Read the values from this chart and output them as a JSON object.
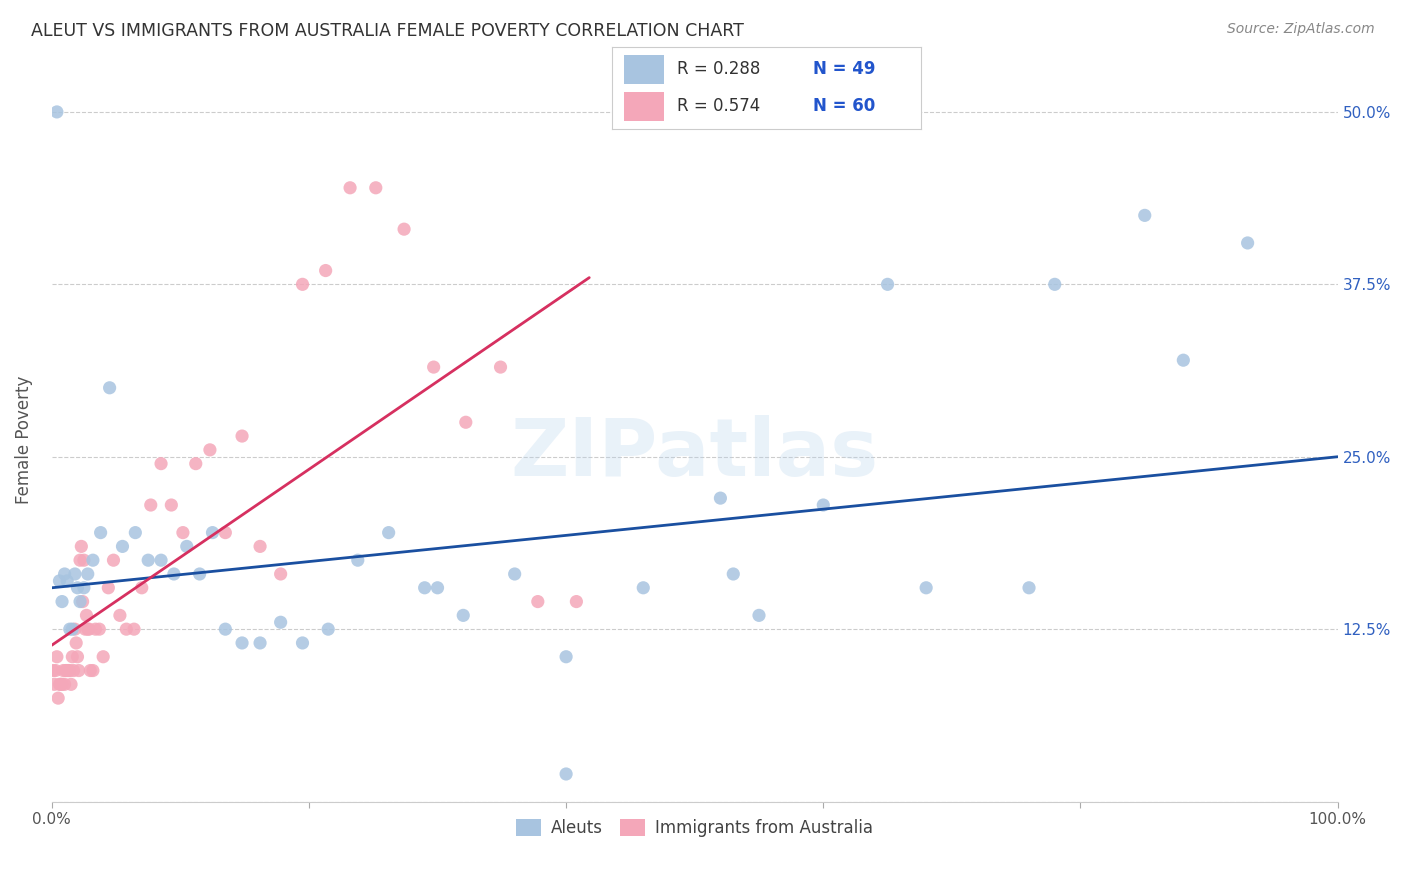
{
  "title": "ALEUT VS IMMIGRANTS FROM AUSTRALIA FEMALE POVERTY CORRELATION CHART",
  "source": "Source: ZipAtlas.com",
  "ylabel": "Female Poverty",
  "yticks": [
    0.0,
    0.125,
    0.25,
    0.375,
    0.5
  ],
  "ytick_labels": [
    "",
    "12.5%",
    "25.0%",
    "37.5%",
    "50.0%"
  ],
  "legend_r1": "R = 0.288",
  "legend_n1": "N = 49",
  "legend_r2": "R = 0.574",
  "legend_n2": "N = 60",
  "aleut_color": "#a8c4e0",
  "australia_color": "#f4a7b9",
  "trend_aleut_color": "#1a4fa0",
  "trend_australia_color": "#d63060",
  "watermark_text": "ZIPatlas",
  "background_color": "#ffffff",
  "aleut_x": [
    0.004,
    0.006,
    0.008,
    0.01,
    0.012,
    0.014,
    0.016,
    0.018,
    0.02,
    0.022,
    0.025,
    0.028,
    0.032,
    0.038,
    0.045,
    0.055,
    0.065,
    0.075,
    0.085,
    0.095,
    0.105,
    0.115,
    0.125,
    0.135,
    0.148,
    0.162,
    0.178,
    0.195,
    0.215,
    0.238,
    0.262,
    0.29,
    0.32,
    0.36,
    0.4,
    0.46,
    0.53,
    0.6,
    0.68,
    0.76,
    0.85,
    0.93,
    0.52,
    0.65,
    0.78,
    0.88,
    0.3,
    0.4,
    0.55
  ],
  "aleut_y": [
    0.5,
    0.16,
    0.145,
    0.165,
    0.16,
    0.125,
    0.125,
    0.165,
    0.155,
    0.145,
    0.155,
    0.165,
    0.175,
    0.195,
    0.3,
    0.185,
    0.195,
    0.175,
    0.175,
    0.165,
    0.185,
    0.165,
    0.195,
    0.125,
    0.115,
    0.115,
    0.13,
    0.115,
    0.125,
    0.175,
    0.195,
    0.155,
    0.135,
    0.165,
    0.02,
    0.155,
    0.165,
    0.215,
    0.155,
    0.155,
    0.425,
    0.405,
    0.22,
    0.375,
    0.375,
    0.32,
    0.155,
    0.105,
    0.135
  ],
  "australia_x": [
    0.001,
    0.002,
    0.003,
    0.004,
    0.005,
    0.006,
    0.007,
    0.008,
    0.009,
    0.01,
    0.011,
    0.012,
    0.013,
    0.014,
    0.015,
    0.016,
    0.017,
    0.018,
    0.019,
    0.02,
    0.021,
    0.022,
    0.023,
    0.024,
    0.025,
    0.026,
    0.027,
    0.028,
    0.029,
    0.03,
    0.032,
    0.034,
    0.037,
    0.04,
    0.044,
    0.048,
    0.053,
    0.058,
    0.064,
    0.07,
    0.077,
    0.085,
    0.093,
    0.102,
    0.112,
    0.123,
    0.135,
    0.148,
    0.162,
    0.178,
    0.195,
    0.213,
    0.232,
    0.252,
    0.274,
    0.297,
    0.322,
    0.349,
    0.378,
    0.408
  ],
  "australia_y": [
    0.095,
    0.085,
    0.095,
    0.105,
    0.075,
    0.085,
    0.085,
    0.085,
    0.095,
    0.085,
    0.095,
    0.095,
    0.095,
    0.095,
    0.085,
    0.105,
    0.095,
    0.125,
    0.115,
    0.105,
    0.095,
    0.175,
    0.185,
    0.145,
    0.175,
    0.125,
    0.135,
    0.125,
    0.125,
    0.095,
    0.095,
    0.125,
    0.125,
    0.105,
    0.155,
    0.175,
    0.135,
    0.125,
    0.125,
    0.155,
    0.215,
    0.245,
    0.215,
    0.195,
    0.245,
    0.255,
    0.195,
    0.265,
    0.185,
    0.165,
    0.375,
    0.385,
    0.445,
    0.445,
    0.415,
    0.315,
    0.275,
    0.315,
    0.145,
    0.145
  ],
  "xlim": [
    0.0,
    1.0
  ],
  "ylim": [
    0.0,
    0.525
  ]
}
